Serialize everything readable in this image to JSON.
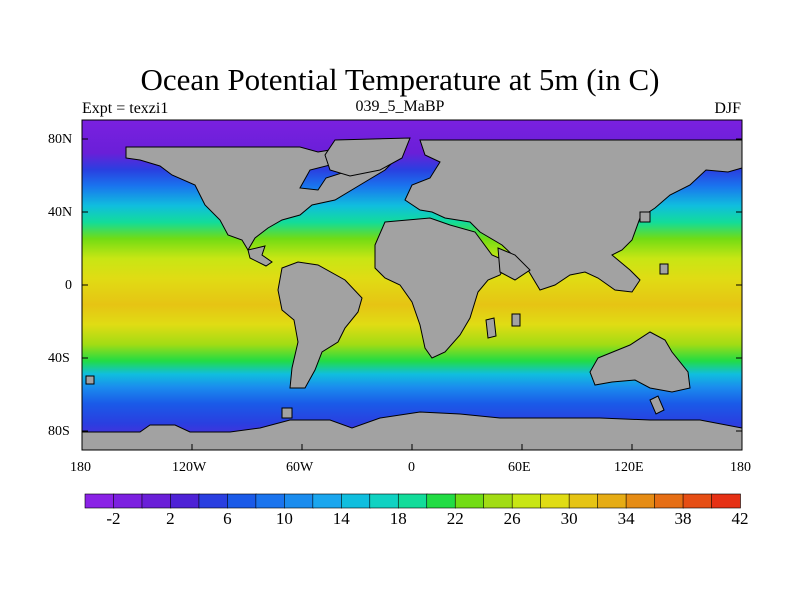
{
  "title": "Ocean Potential Temperature at 5m (in C)",
  "subtitle_left": "Expt = texzi1",
  "subtitle_center": "039_5_MaBP",
  "subtitle_right": "DJF",
  "lat_labels": [
    "80N",
    "40N",
    "0",
    "40S",
    "80S"
  ],
  "lon_labels": [
    "180",
    "120W",
    "60W",
    "0",
    "60E",
    "120E",
    "180"
  ],
  "colorbar": {
    "labels": [
      "-2",
      "2",
      "6",
      "10",
      "14",
      "18",
      "22",
      "26",
      "30",
      "34",
      "38",
      "42"
    ],
    "colors": [
      "#8a22e6",
      "#7c20e0",
      "#6a1fd8",
      "#4e22d6",
      "#2a3fe0",
      "#1a5ae8",
      "#1a74ee",
      "#1a8cee",
      "#1aa6ee",
      "#10bede",
      "#10d2c2",
      "#12dc9a",
      "#22dc44",
      "#72dc14",
      "#a2dc14",
      "#c8e614",
      "#e0dc14",
      "#e6c414",
      "#e6ac14",
      "#e68c14",
      "#e66e14",
      "#e64e14",
      "#e63014"
    ]
  },
  "map": {
    "land_color": "#a2a2a2",
    "border_color": "#000000"
  }
}
